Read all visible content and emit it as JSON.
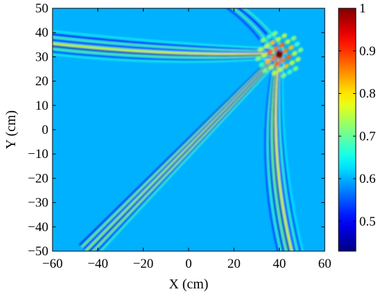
{
  "chart_data": {
    "type": "heatmap",
    "title": "",
    "xlabel": "X (cm)",
    "ylabel": "Y (cm)",
    "xlim": [
      -60,
      60
    ],
    "ylim": [
      -50,
      50
    ],
    "xticks": [
      -60,
      -40,
      -20,
      0,
      20,
      40,
      60
    ],
    "yticks": [
      -50,
      -40,
      -30,
      -20,
      -10,
      0,
      10,
      20,
      30,
      40,
      50
    ],
    "xtick_labels": [
      "−60",
      "−40",
      "−20",
      "0",
      "20",
      "40",
      "60"
    ],
    "ytick_labels": [
      "−50",
      "−40",
      "−30",
      "−20",
      "−10",
      "0",
      "10",
      "20",
      "30",
      "40",
      "50"
    ],
    "grid": false,
    "colormap": "jet",
    "colorbar": {
      "range": [
        0.43,
        1.0
      ],
      "ticks": [
        0.5,
        0.6,
        0.7,
        0.8,
        0.9,
        1.0
      ],
      "tick_labels": [
        "0.5",
        "0.6",
        "0.7",
        "0.8",
        "0.9",
        "1"
      ],
      "placement": "right"
    },
    "background_value": 0.6,
    "features": {
      "focus_spot": {
        "x": 40,
        "y": 31,
        "value": 1.0
      },
      "diagonal_band": {
        "from": [
          -45,
          -50
        ],
        "to": [
          40,
          31
        ]
      },
      "upper_arc": {
        "from": [
          -60,
          35
        ],
        "to": [
          40,
          31
        ]
      },
      "right_arc": {
        "from": [
          40,
          31
        ],
        "to": [
          45,
          -50
        ]
      }
    }
  }
}
